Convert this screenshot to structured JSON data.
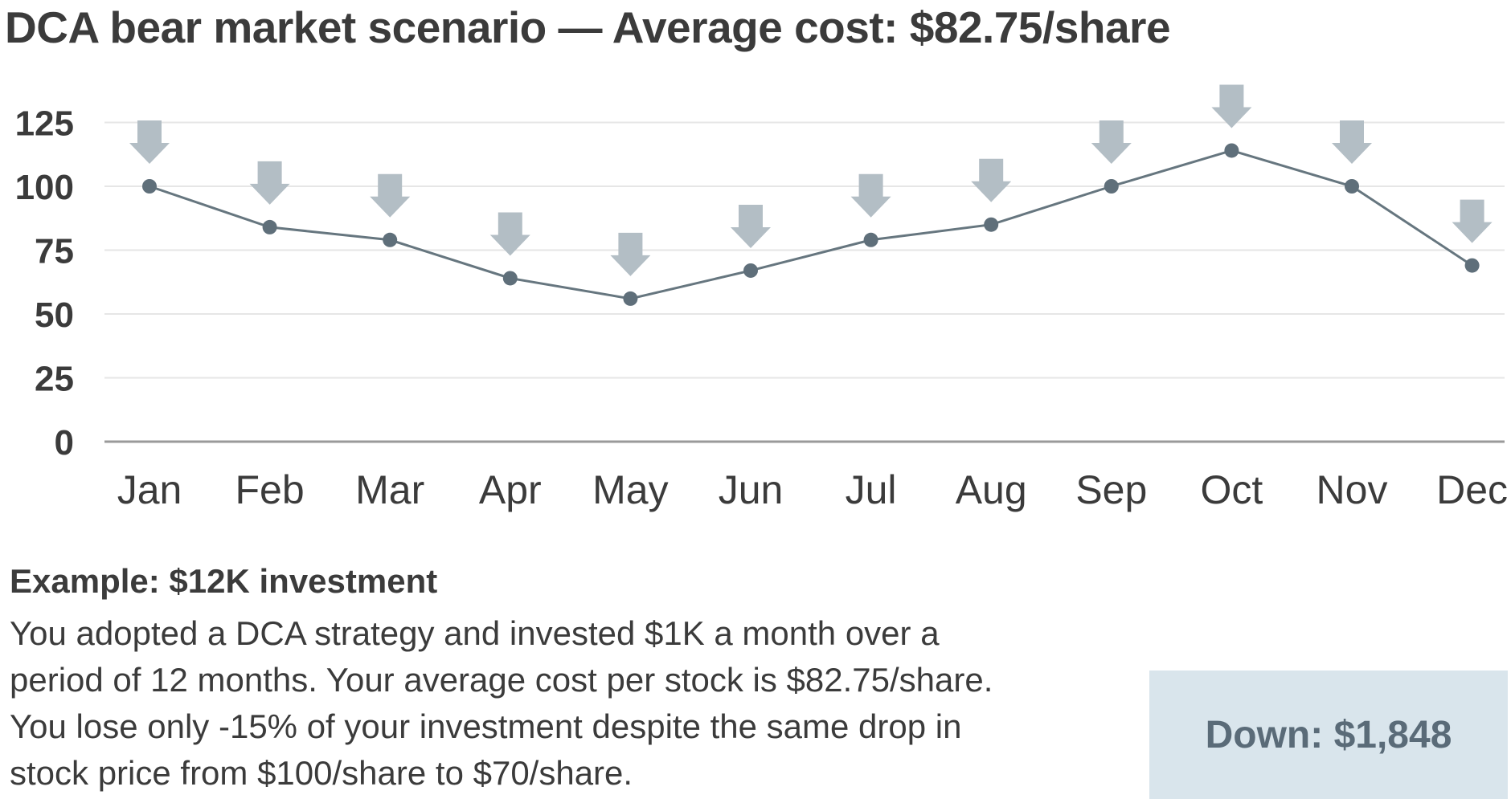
{
  "title": "DCA bear market scenario — Average cost: $82.75/share",
  "chart_data": {
    "type": "line",
    "categories": [
      "Jan",
      "Feb",
      "Mar",
      "Apr",
      "May",
      "Jun",
      "Jul",
      "Aug",
      "Sep",
      "Oct",
      "Nov",
      "Dec"
    ],
    "values": [
      100,
      84,
      79,
      64,
      56,
      67,
      79,
      85,
      100,
      114,
      100,
      69
    ],
    "yticks": [
      0,
      25,
      50,
      75,
      100,
      125
    ],
    "ylim": [
      0,
      130
    ],
    "grid": true,
    "markers": "buy-arrow above each point",
    "colors": {
      "line": "#66767f",
      "point": "#5f6f7a",
      "arrow": "#b3bec5",
      "grid": "#e6e6e6",
      "axis": "#9a9a9a"
    }
  },
  "example": {
    "heading": "Example: $12K investment",
    "lines": [
      "You adopted a DCA strategy and invested $1K a month over a",
      "period of 12 months. Your average cost per stock is $82.75/share.",
      "You lose only -15% of your investment despite the same drop in",
      "stock price from $100/share to $70/share."
    ]
  },
  "result_box": {
    "label": "Down: $1,848"
  }
}
